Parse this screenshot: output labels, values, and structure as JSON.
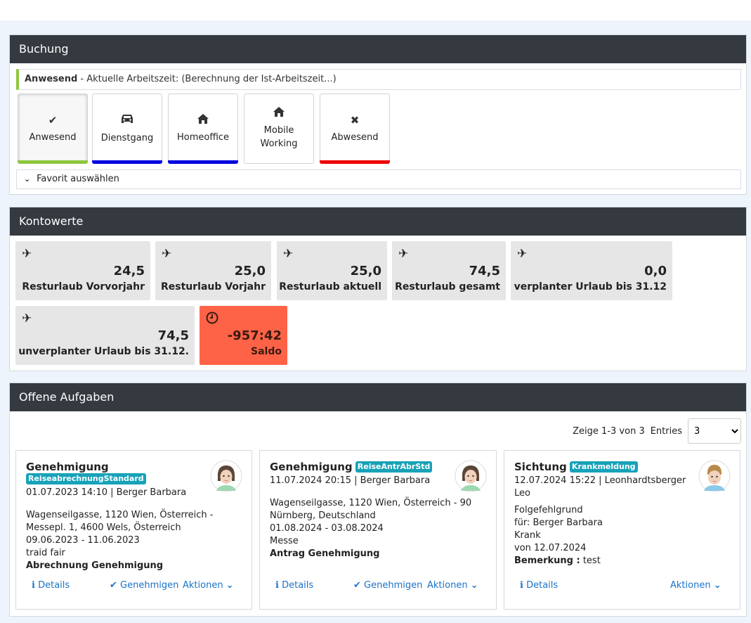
{
  "buchung": {
    "title": "Buchung",
    "status_bold": "Anwesend",
    "status_text": " - Aktuelle Arbeitszeit: (Berechnung der Ist-Arbeitszeit...)",
    "buttons": [
      {
        "label": "Anwesend",
        "icon": "check-icon",
        "bar_color": "#8dc63f"
      },
      {
        "label": "Dienstgang",
        "icon": "car-icon",
        "bar_color": "#0000dd"
      },
      {
        "label": "Homeoffice",
        "icon": "home-icon",
        "bar_color": "#0000dd"
      },
      {
        "label1": "Mobile",
        "label2": "Working",
        "icon": "home-icon"
      },
      {
        "label": "Abwesend",
        "icon": "times-icon",
        "bar_color": "#ee0000"
      }
    ],
    "favorite_label": "Favorit auswählen"
  },
  "kontowerte": {
    "title": "Kontowerte",
    "tiles": [
      {
        "value": "24,5",
        "label": "Resturlaub Vorvorjahr",
        "icon": "plane-icon"
      },
      {
        "value": "25,0",
        "label": "Resturlaub Vorjahr",
        "icon": "plane-icon"
      },
      {
        "value": "25,0",
        "label": "Resturlaub aktuell",
        "icon": "plane-icon"
      },
      {
        "value": "74,5",
        "label": "Resturlaub gesamt",
        "icon": "plane-icon"
      },
      {
        "value": "0,0",
        "label": "verplanter Urlaub bis 31.12",
        "icon": "plane-icon"
      },
      {
        "value": "74,5",
        "label": "unverplanter Urlaub bis 31.12.",
        "icon": "plane-icon"
      },
      {
        "value": "-957:42",
        "label": "Saldo",
        "icon": "clock-icon",
        "color": "#ff6347"
      }
    ]
  },
  "aufgaben": {
    "title": "Offene Aufgaben",
    "pager_text": "Zeige 1-3 von 3",
    "entries_label": "Entries",
    "entries_value": "3",
    "details_label": "Details",
    "approve_label": "Genehmigen",
    "actions_label": "Aktionen",
    "cards": [
      {
        "title": "Genehmigung",
        "badge": "ReiseabrechnungStandard",
        "meta": "01.07.2023 14:10 | Berger Barbara",
        "lines": [
          "Wagenseilgasse, 1120 Wien, Österreich -",
          "Messepl. 1, 4600 Wels, Österreich",
          "09.06.2023 - 11.06.2023",
          "traid fair"
        ],
        "bold": "Abrechnung Genehmigung"
      },
      {
        "title": "Genehmigung",
        "badge": "ReiseAntrAbrStd",
        "meta": "11.07.2024 20:15 | Berger Barbara",
        "lines": [
          "Wagenseilgasse, 1120 Wien, Österreich - 90",
          "Nürnberg, Deutschland",
          "01.08.2024 - 03.08.2024",
          "Messe"
        ],
        "bold": "Antrag Genehmigung"
      },
      {
        "title": "Sichtung",
        "badge": "Krankmeldung",
        "meta1": "12.07.2024 15:22 | Leonhardtsberger",
        "meta2": "Leo",
        "lines": [
          "Folgefehlgrund",
          "für:  Berger Barbara",
          "Krank",
          "von    12.07.2024"
        ],
        "bem_label": "Bemerkung :",
        "bem_value": "test"
      }
    ]
  },
  "colors": {
    "header": "#343a40",
    "tile": "#e6e6e6",
    "badge": "#17a2b8",
    "link": "#1a73c7"
  }
}
